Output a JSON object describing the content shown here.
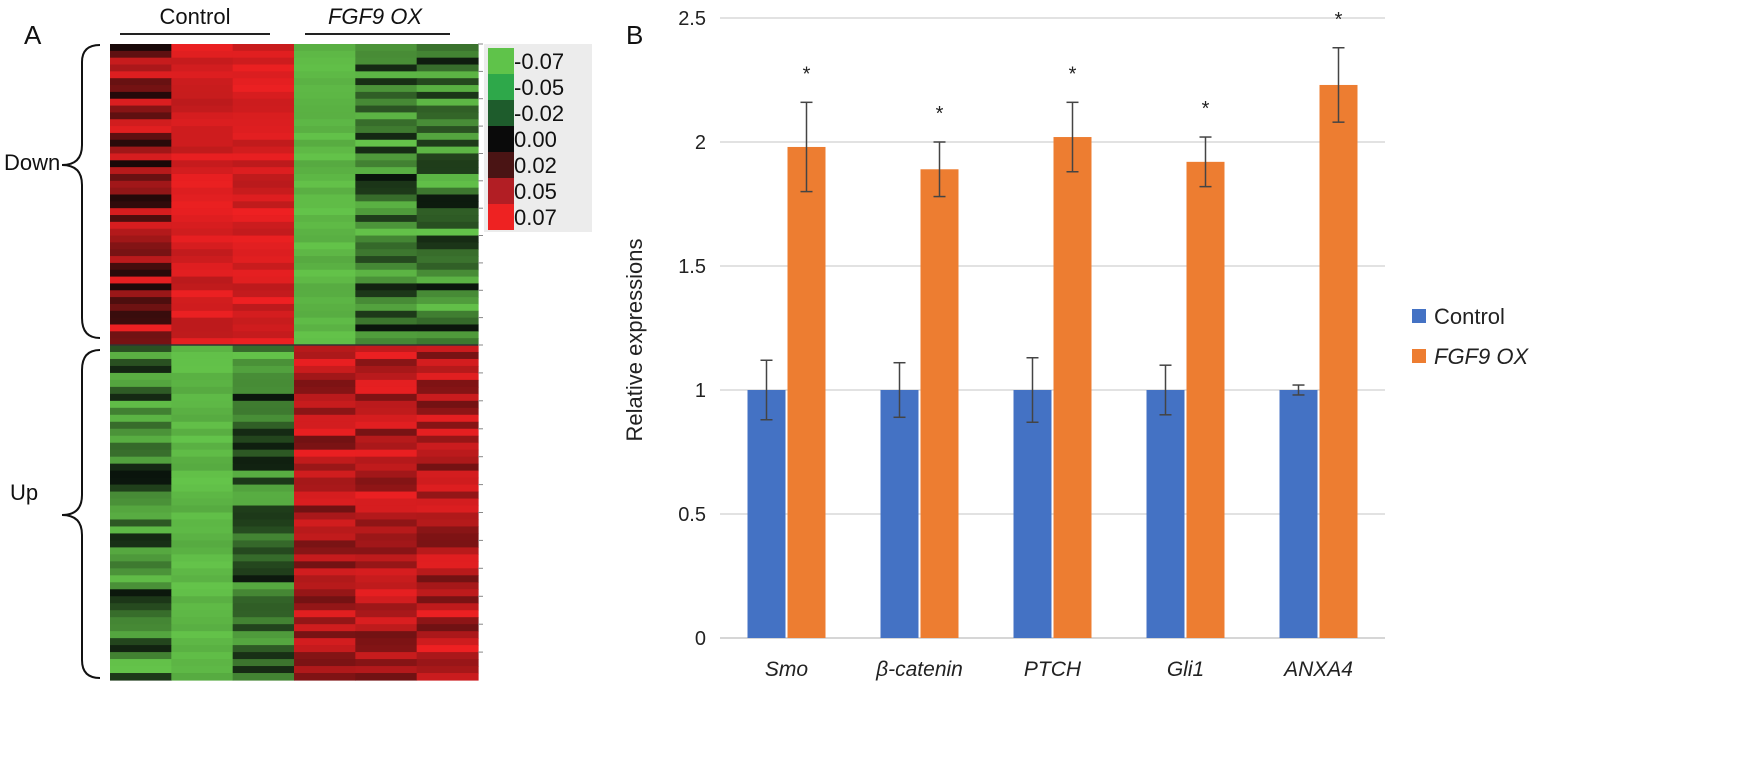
{
  "panels": {
    "a": "A",
    "b": "B"
  },
  "heatmap": {
    "groups": [
      "Control",
      "FGF9 OX"
    ],
    "group_italic": [
      false,
      true
    ],
    "clusters": [
      "Down",
      "Up"
    ],
    "scale_values": [
      "-0.07",
      "-0.05",
      "-0.02",
      "0.00",
      "0.02",
      "0.05",
      "0.07"
    ],
    "scale_colors": [
      "#5fc34a",
      "#2ea84a",
      "#1e5c2c",
      "#0a0a0a",
      "#4a1414",
      "#b21e24",
      "#ee2222"
    ]
  },
  "chart_data": {
    "type": "bar",
    "categories": [
      "Smo",
      "β-catenin",
      "PTCH",
      "Gli1",
      "ANXA4"
    ],
    "ylabel": "Relative expressions",
    "xlabel": "",
    "ylim": [
      0,
      2.5
    ],
    "yticks": [
      "0",
      "0.5",
      "1",
      "1.5",
      "2",
      "2.5"
    ],
    "ytick_values": [
      0,
      0.5,
      1,
      1.5,
      2,
      2.5
    ],
    "grid": true,
    "legend_position": "right",
    "series": [
      {
        "name": "Control",
        "italic": false,
        "color": "#4472c4",
        "values": [
          1.0,
          1.0,
          1.0,
          1.0,
          1.0
        ],
        "errors": [
          0.12,
          0.11,
          0.13,
          0.1,
          0.02
        ]
      },
      {
        "name": "FGF9 OX",
        "italic": true,
        "color": "#ed7d31",
        "values": [
          1.98,
          1.89,
          2.02,
          1.92,
          2.23
        ],
        "errors": [
          0.18,
          0.11,
          0.14,
          0.1,
          0.15
        ]
      }
    ],
    "significance": [
      "*",
      "*",
      "*",
      "*",
      "*"
    ]
  }
}
